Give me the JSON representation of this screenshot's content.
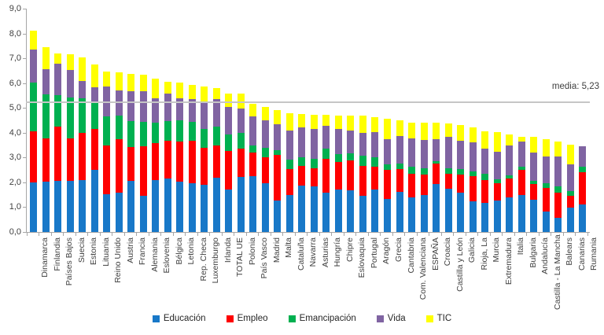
{
  "chart_data": {
    "type": "bar",
    "stacked": true,
    "title": "",
    "xlabel": "",
    "ylabel": "",
    "ylim": [
      0,
      9
    ],
    "grid": false,
    "legend_position": "bottom",
    "y_tick_labels": [
      "0,0",
      "1,0",
      "2,0",
      "3,0",
      "4,0",
      "5,0",
      "6,0",
      "7,0",
      "8,0",
      "9,0"
    ],
    "categories": [
      "Dinamarca",
      "Finlandia",
      "Países Bajos",
      "Suecia",
      "Estonia",
      "Lituania",
      "Reino Unido",
      "Austria",
      "Francia",
      "Alemania",
      "Eslovenia",
      "Bélgica",
      "Letonia",
      "Rep. Checa",
      "Luxemburgo",
      "Irlanda",
      "TOTAL UE",
      "Polonia",
      "País Vasco",
      "Madrid",
      "Malta",
      "Cataluña",
      "Navarra",
      "Asturias",
      "Hungría",
      "Chipre",
      "Eslovaquia",
      "Portugal",
      "Aragón",
      "Grecia",
      "Cantabria",
      "Com. Valenciana",
      "ESPAÑA",
      "Croacia",
      "Castilla y León",
      "Galicia",
      "Rioja, La",
      "Murcia",
      "Extremadura",
      "Italia",
      "Bulgaria",
      "Andalucía",
      "Castilla - La Mancha",
      "Balears",
      "Canarias",
      "Rumania"
    ],
    "series": [
      {
        "name": "Educación",
        "color": "#1878c8",
        "values": [
          2.0,
          2.04,
          2.06,
          2.06,
          2.09,
          2.51,
          1.51,
          1.58,
          2.06,
          1.46,
          2.09,
          2.16,
          2.04,
          1.98,
          1.9,
          2.2,
          1.7,
          2.22,
          2.24,
          1.98,
          1.27,
          1.5,
          1.88,
          1.85,
          1.58,
          1.72,
          1.69,
          1.46,
          1.71,
          1.32,
          1.63,
          1.39,
          1.5,
          1.92,
          1.74,
          1.58,
          1.24,
          1.18,
          1.27,
          1.39,
          1.5,
          1.29,
          0.83,
          0.56,
          0.98,
          1.1
        ]
      },
      {
        "name": "Empleo",
        "color": "#fe0000",
        "values": [
          2.05,
          1.74,
          2.18,
          1.72,
          1.89,
          1.64,
          1.97,
          2.16,
          1.37,
          2.0,
          1.5,
          1.51,
          1.62,
          1.69,
          1.48,
          1.28,
          1.55,
          1.13,
          0.95,
          1.03,
          1.84,
          1.03,
          0.78,
          0.73,
          1.37,
          1.11,
          1.18,
          1.21,
          0.93,
          1.19,
          0.9,
          0.95,
          0.8,
          0.84,
          0.6,
          0.72,
          1.0,
          0.91,
          0.71,
          0.77,
          1.01,
          0.63,
          0.95,
          1.02,
          0.47,
          1.3
        ]
      },
      {
        "name": "Emancipación",
        "color": "#00b050",
        "values": [
          1.97,
          1.78,
          1.28,
          1.65,
          1.4,
          1.1,
          1.19,
          0.95,
          1.05,
          0.99,
          0.82,
          0.81,
          0.84,
          0.76,
          0.76,
          0.76,
          0.67,
          0.64,
          0.3,
          0.39,
          0.18,
          0.4,
          0.35,
          0.37,
          0.4,
          0.31,
          0.29,
          0.39,
          0.37,
          0.21,
          0.23,
          0.28,
          0.28,
          0.09,
          0.24,
          0.25,
          0.19,
          0.25,
          0.13,
          0.11,
          0.13,
          0.14,
          0.2,
          0.25,
          0.2,
          0.24
        ]
      },
      {
        "name": "Vida",
        "color": "#8064a2",
        "values": [
          1.32,
          1.01,
          1.26,
          1.11,
          0.71,
          0.57,
          1.18,
          1.01,
          1.18,
          1.22,
          0.99,
          1.09,
          0.88,
          0.93,
          1.13,
          1.13,
          1.12,
          0.97,
          1.17,
          1.11,
          1.06,
          1.16,
          1.21,
          1.19,
          0.92,
          1.0,
          0.93,
          0.93,
          1.02,
          1.02,
          1.12,
          1.16,
          1.13,
          0.89,
          1.24,
          1.12,
          1.18,
          1.01,
          1.11,
          1.21,
          1.0,
          1.13,
          1.05,
          1.22,
          1.07,
          0.81
        ]
      },
      {
        "name": "TIC",
        "color": "#ffff00",
        "values": [
          0.76,
          0.89,
          0.4,
          0.61,
          0.95,
          0.93,
          0.62,
          0.73,
          0.7,
          0.66,
          0.77,
          0.48,
          0.64,
          0.57,
          0.58,
          0.42,
          0.55,
          0.61,
          0.49,
          0.53,
          0.56,
          0.68,
          0.53,
          0.59,
          0.45,
          0.56,
          0.6,
          0.69,
          0.61,
          0.82,
          0.63,
          0.63,
          0.7,
          0.66,
          0.56,
          0.63,
          0.59,
          0.71,
          0.81,
          0.44,
          0.18,
          0.63,
          0.71,
          0.59,
          0.8,
          0.0
        ]
      }
    ],
    "annotations": {
      "media": {
        "label": "media: 5,23",
        "value": 5.23
      }
    }
  }
}
